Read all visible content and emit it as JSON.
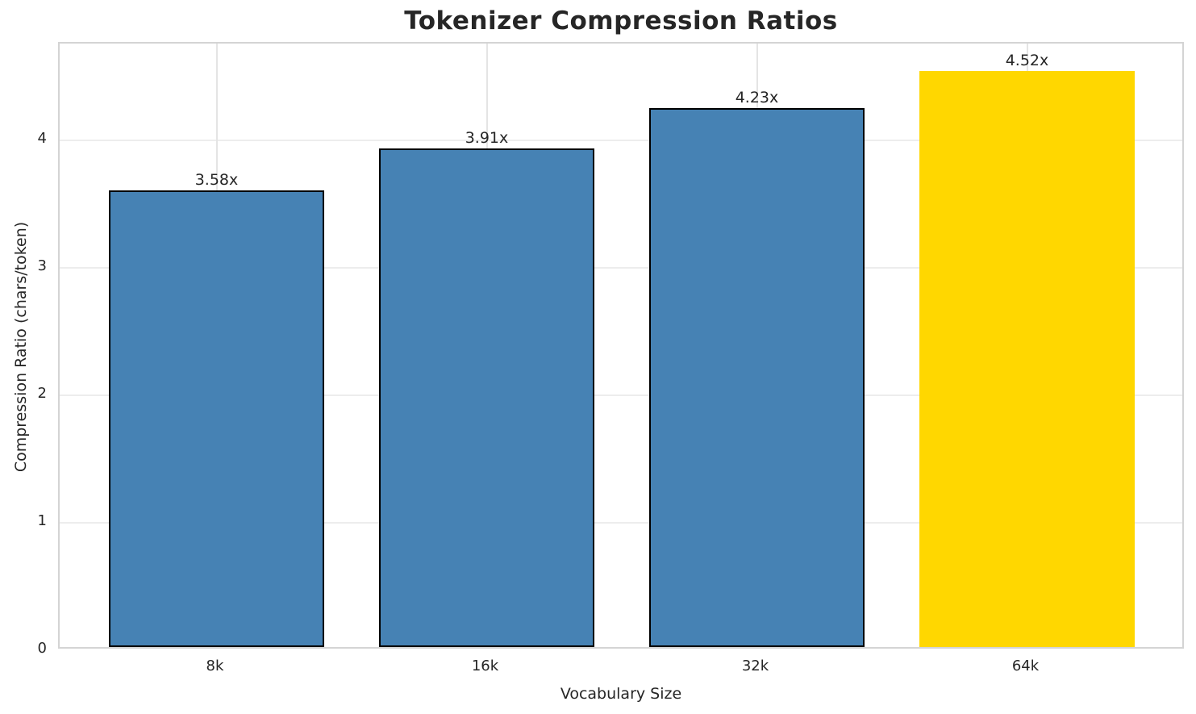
{
  "chart_data": {
    "type": "bar",
    "title": "Tokenizer Compression Ratios",
    "xlabel": "Vocabulary Size",
    "ylabel": "Compression Ratio (chars/token)",
    "categories": [
      "8k",
      "16k",
      "32k",
      "64k"
    ],
    "values": [
      3.58,
      3.91,
      4.23,
      4.52
    ],
    "bar_labels": [
      "3.58x",
      "3.91x",
      "4.23x",
      "4.52x"
    ],
    "bar_colors": [
      "#4682B4",
      "#4682B4",
      "#4682B4",
      "#FFD700"
    ],
    "bar_edge_colors": [
      "#000000",
      "#000000",
      "#000000",
      "none"
    ],
    "highlight_color": "#FFD700",
    "default_bar_color": "#4682B4",
    "yticks": [
      "0",
      "1",
      "2",
      "3",
      "4"
    ],
    "ytick_values": [
      0,
      1,
      2,
      3,
      4
    ],
    "ylim": [
      0,
      4.76
    ],
    "grid": true,
    "grid_color": "#ededed",
    "spine_color": "#d4d4d4",
    "legend": "none"
  }
}
